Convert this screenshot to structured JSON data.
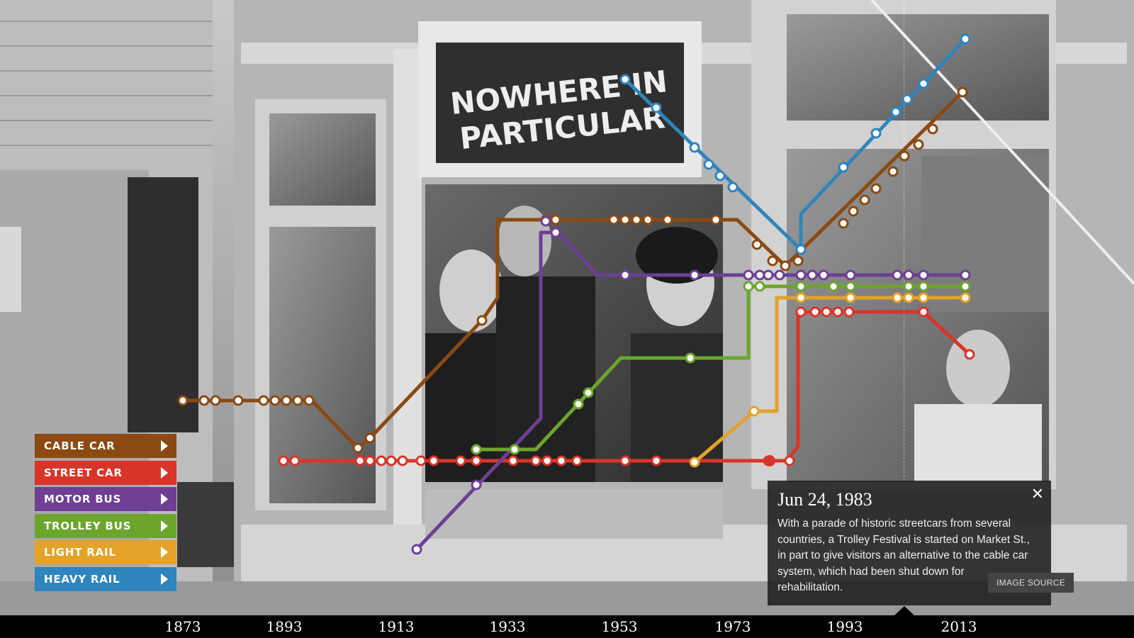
{
  "legend": [
    {
      "label": "CABLE CAR",
      "color": "#8a4a12"
    },
    {
      "label": "STREET CAR",
      "color": "#d8352a"
    },
    {
      "label": "MOTOR BUS",
      "color": "#6e3f93"
    },
    {
      "label": "TROLLEY BUS",
      "color": "#6ca52c"
    },
    {
      "label": "LIGHT RAIL",
      "color": "#e3a22a"
    },
    {
      "label": "HEAVY RAIL",
      "color": "#2f85bd"
    }
  ],
  "axis": {
    "ticks": [
      "1873",
      "1893",
      "1913",
      "1933",
      "1953",
      "1973",
      "1993",
      "2013"
    ]
  },
  "photo_sign": {
    "line1": "NOWHERE IN",
    "line2": "PARTICULAR"
  },
  "popup": {
    "date": "Jun 24, 1983",
    "text": "With a parade of historic streetcars from several countries, a Trolley Festival is started on Market St., in part to give visitors an alternative to the cable car system, which had been shut down for rehabilitation.",
    "close_icon": "close-icon",
    "source_label": "IMAGE SOURCE"
  }
}
